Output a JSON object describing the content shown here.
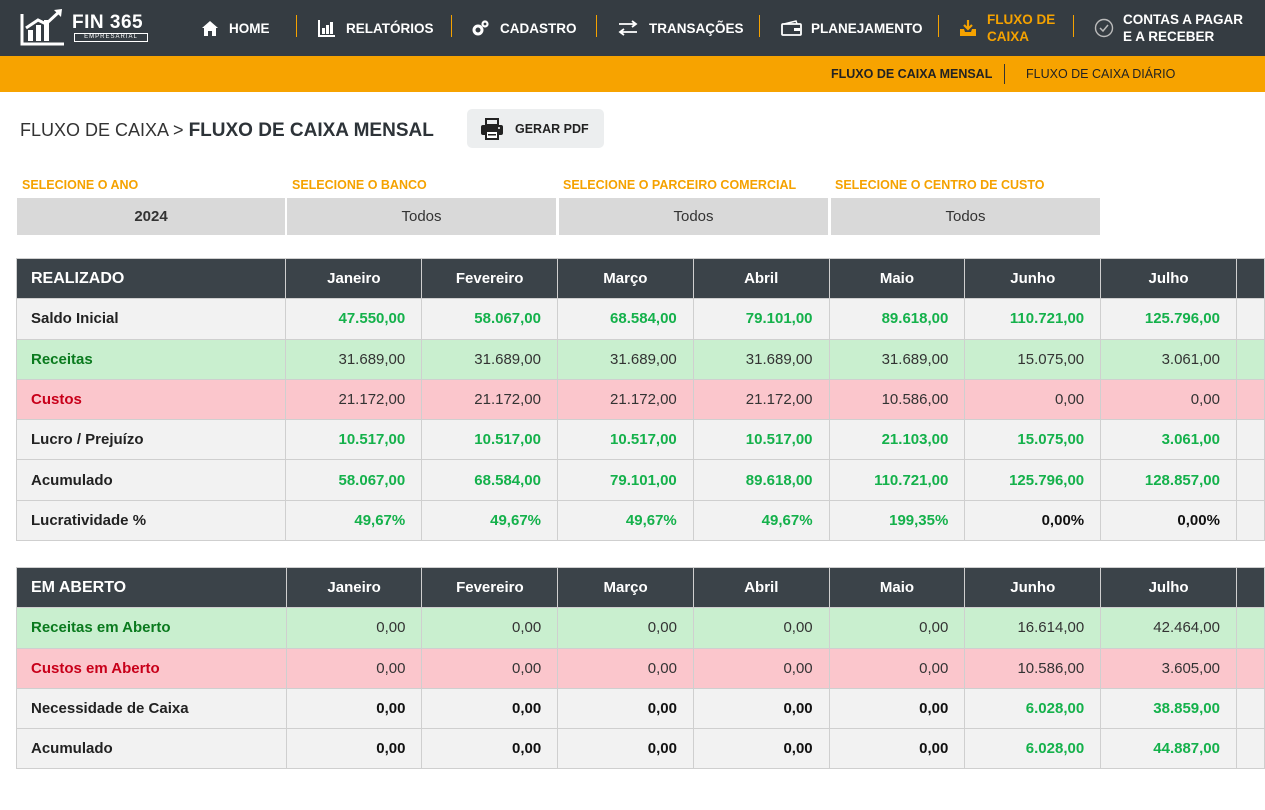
{
  "brand": {
    "name": "FIN 365",
    "tagline": "EMPRESARIAL",
    "accent_color": "#f5a200",
    "nav_bg": "#353c42"
  },
  "nav": {
    "items": [
      {
        "label": "HOME",
        "icon": "home-icon"
      },
      {
        "label": "RELATÓRIOS",
        "icon": "bar-chart-icon"
      },
      {
        "label": "CADASTRO",
        "icon": "gears-icon"
      },
      {
        "label": "TRANSAÇÕES",
        "icon": "transfer-arrows-icon"
      },
      {
        "label": "PLANEJAMENTO",
        "icon": "wallet-icon"
      },
      {
        "label_line1": "FLUXO DE",
        "label_line2": "CAIXA",
        "icon": "tray-download-icon",
        "active": true
      },
      {
        "label_line1": "CONTAS A PAGAR",
        "label_line2": "E A RECEBER",
        "icon": "check-circle-icon"
      }
    ]
  },
  "subnav": {
    "monthly": "FLUXO DE CAIXA MENSAL",
    "daily": "FLUXO DE CAIXA DIÁRIO",
    "active": "monthly"
  },
  "page": {
    "breadcrumb_parent": "FLUXO DE CAIXA >",
    "title": "FLUXO DE CAIXA MENSAL",
    "pdf_button": "GERAR PDF"
  },
  "filters": {
    "year": {
      "label": "SELECIONE O ANO",
      "value": "2024"
    },
    "bank": {
      "label": "SELECIONE O BANCO",
      "value": "Todos"
    },
    "partner": {
      "label": "SELECIONE O PARCEIRO COMERCIAL",
      "value": "Todos"
    },
    "cost_center": {
      "label": "SELECIONE O CENTRO DE CUSTO",
      "value": "Todos"
    }
  },
  "months": [
    "Janeiro",
    "Fevereiro",
    "Março",
    "Abril",
    "Maio",
    "Junho",
    "Julho"
  ],
  "realizado": {
    "title": "REALIZADO",
    "rows": [
      {
        "label": "Saldo Inicial",
        "values": [
          "47.550,00",
          "58.067,00",
          "68.584,00",
          "79.101,00",
          "89.618,00",
          "110.721,00",
          "125.796,00"
        ]
      },
      {
        "label": "Receitas",
        "values": [
          "31.689,00",
          "31.689,00",
          "31.689,00",
          "31.689,00",
          "31.689,00",
          "15.075,00",
          "3.061,00"
        ]
      },
      {
        "label": "Custos",
        "values": [
          "21.172,00",
          "21.172,00",
          "21.172,00",
          "21.172,00",
          "10.586,00",
          "0,00",
          "0,00"
        ]
      },
      {
        "label": "Lucro / Prejuízo",
        "values": [
          "10.517,00",
          "10.517,00",
          "10.517,00",
          "10.517,00",
          "21.103,00",
          "15.075,00",
          "3.061,00"
        ]
      },
      {
        "label": "Acumulado",
        "values": [
          "58.067,00",
          "68.584,00",
          "79.101,00",
          "89.618,00",
          "110.721,00",
          "125.796,00",
          "128.857,00"
        ]
      },
      {
        "label": "Lucratividade %",
        "values": [
          "49,67%",
          "49,67%",
          "49,67%",
          "49,67%",
          "199,35%",
          "0,00%",
          "0,00%"
        ]
      }
    ]
  },
  "em_aberto": {
    "title": "EM ABERTO",
    "rows": [
      {
        "label": "Receitas em Aberto",
        "values": [
          "0,00",
          "0,00",
          "0,00",
          "0,00",
          "0,00",
          "16.614,00",
          "42.464,00"
        ]
      },
      {
        "label": "Custos em Aberto",
        "values": [
          "0,00",
          "0,00",
          "0,00",
          "0,00",
          "0,00",
          "10.586,00",
          "3.605,00"
        ]
      },
      {
        "label": "Necessidade de Caixa",
        "values": [
          "0,00",
          "0,00",
          "0,00",
          "0,00",
          "0,00",
          "6.028,00",
          "38.859,00"
        ]
      },
      {
        "label": "Acumulado",
        "values": [
          "0,00",
          "0,00",
          "0,00",
          "0,00",
          "0,00",
          "6.028,00",
          "44.887,00"
        ]
      }
    ]
  }
}
